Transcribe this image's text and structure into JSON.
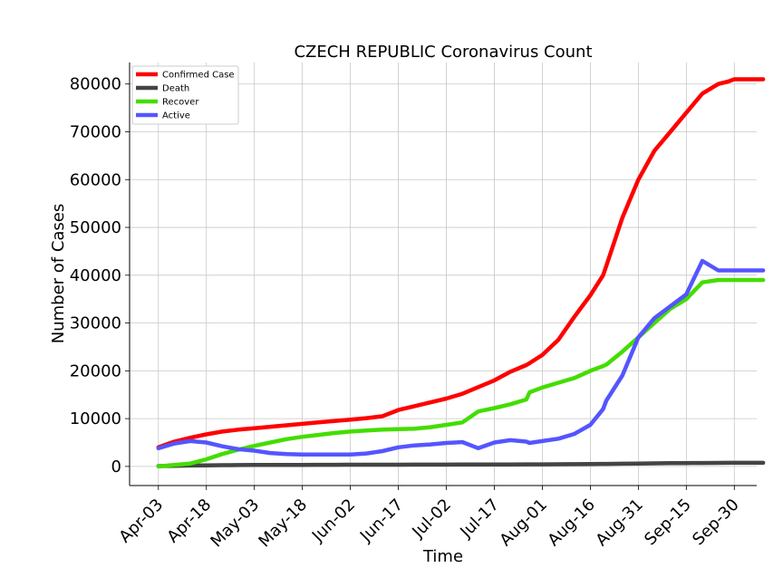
{
  "chart_data": {
    "type": "line",
    "title": "CZECH REPUBLIC Coronavirus Count",
    "xlabel": "Time",
    "ylabel": "Number of Cases",
    "x_ticks": [
      "Apr-03",
      "Apr-18",
      "May-03",
      "May-18",
      "Jun-02",
      "Jun-17",
      "Jul-02",
      "Jul-17",
      "Aug-01",
      "Aug-16",
      "Aug-31",
      "Sep-15",
      "Sep-30"
    ],
    "y_ticks": [
      0,
      10000,
      20000,
      30000,
      40000,
      50000,
      60000,
      70000,
      80000
    ],
    "y_tick_labels": [
      "0",
      "10000",
      "20000",
      "30000",
      "40000",
      "50000",
      "60000",
      "70000",
      "80000"
    ],
    "x_range_days": [
      -9,
      187
    ],
    "ylim": [
      -4000,
      84500
    ],
    "grid": true,
    "legend_position": "top-left",
    "x_days": [
      0,
      5,
      10,
      15,
      20,
      25,
      30,
      35,
      40,
      45,
      50,
      55,
      60,
      65,
      70,
      75,
      80,
      85,
      90,
      95,
      100,
      105,
      110,
      115,
      116,
      120,
      125,
      130,
      135,
      139,
      140,
      145,
      150,
      155,
      160,
      165,
      170,
      175,
      178,
      180,
      182,
      184,
      185,
      186,
      187,
      188,
      189
    ],
    "series": [
      {
        "name": "Confirmed Case",
        "color": "#ff0000",
        "values": [
          4000,
          5200,
          6000,
          6700,
          7300,
          7700,
          8000,
          8300,
          8600,
          8900,
          9200,
          9500,
          9800,
          10100,
          10500,
          11800,
          12600,
          13400,
          14200,
          15200,
          16600,
          18000,
          19800,
          21200,
          21600,
          23300,
          26500,
          31300,
          35800,
          40000,
          42000,
          52000,
          60000,
          66000,
          70000,
          74000,
          78000,
          80000,
          80500,
          81000,
          81000,
          81000,
          81000,
          81000,
          81000,
          81000,
          81000
        ]
      },
      {
        "name": "Death",
        "color": "#444444",
        "values": [
          80,
          120,
          180,
          230,
          260,
          280,
          300,
          310,
          320,
          330,
          340,
          340,
          350,
          350,
          360,
          360,
          370,
          370,
          380,
          390,
          400,
          410,
          420,
          430,
          430,
          440,
          460,
          480,
          500,
          520,
          530,
          560,
          600,
          640,
          680,
          700,
          720,
          740,
          750,
          760,
          760,
          760,
          760,
          760,
          760,
          760,
          760
        ]
      },
      {
        "name": "Recover",
        "color": "#44dd00",
        "values": [
          0,
          300,
          600,
          1500,
          2600,
          3500,
          4300,
          5000,
          5700,
          6200,
          6600,
          7000,
          7300,
          7500,
          7700,
          7800,
          7900,
          8200,
          8700,
          9200,
          11500,
          12200,
          13000,
          14000,
          15500,
          16500,
          17500,
          18500,
          20000,
          21000,
          21300,
          24000,
          27000,
          30000,
          33000,
          35000,
          38500,
          39000,
          39000,
          39000,
          39000,
          39000,
          39000,
          39000,
          39000,
          39000,
          39000
        ]
      },
      {
        "name": "Active",
        "color": "#5555ff",
        "values": [
          3800,
          4800,
          5300,
          5000,
          4200,
          3600,
          3300,
          2800,
          2600,
          2500,
          2500,
          2500,
          2500,
          2700,
          3200,
          4000,
          4400,
          4600,
          4900,
          5100,
          3800,
          5000,
          5500,
          5200,
          4900,
          5300,
          5800,
          6800,
          8700,
          12000,
          13800,
          19000,
          27000,
          31000,
          33500,
          36000,
          43000,
          41000,
          41000,
          41000,
          41000,
          41000,
          41000,
          41000,
          41000,
          41000,
          41000
        ]
      }
    ]
  }
}
